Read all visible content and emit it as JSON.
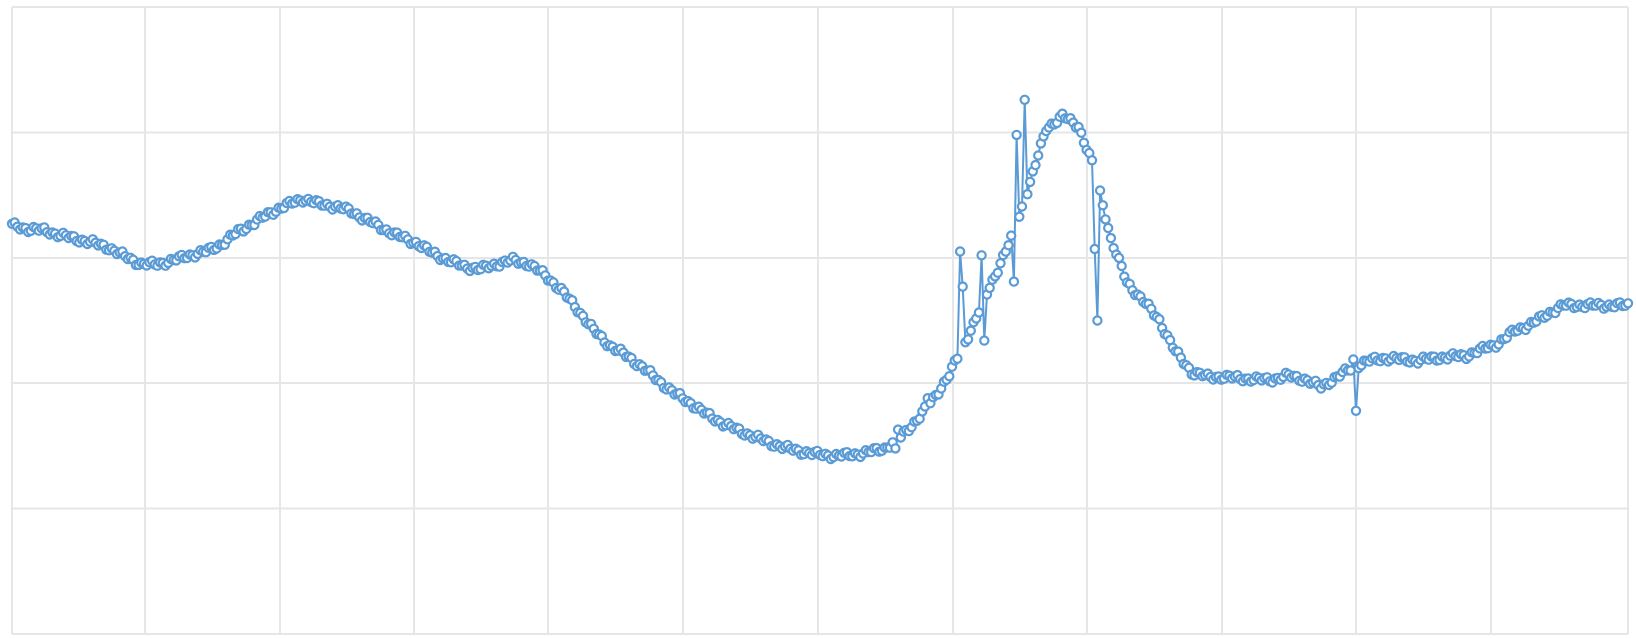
{
  "chart_data": {
    "type": "scatter",
    "title": "",
    "xlabel": "",
    "ylabel": "",
    "grid": true,
    "legend": "none",
    "xlim": [
      0,
      600
    ],
    "ylim": [
      0,
      5
    ],
    "colors": {
      "series": "#5b9bd5",
      "grid": "#e6e6e6",
      "background": "#ffffff"
    },
    "series": [
      {
        "name": "",
        "x_start": 0,
        "x_step": 6,
        "y": [
          3.26,
          3.23,
          3.22,
          3.18,
          3.15,
          3.12,
          3.08,
          3.01,
          2.95,
          2.95,
          2.98,
          3.02,
          3.05,
          3.11,
          3.21,
          3.28,
          3.36,
          3.42,
          3.47,
          3.43,
          3.41,
          3.37,
          3.3,
          3.23,
          3.17,
          3.12,
          3.04,
          2.98,
          2.93,
          2.91,
          2.95,
          2.98,
          2.95,
          2.86,
          2.74,
          2.59,
          2.42,
          2.3,
          2.22,
          2.13,
          2.02,
          1.92,
          1.84,
          1.75,
          1.68,
          1.62,
          1.57,
          1.52,
          1.48,
          1.45,
          1.43,
          1.42,
          1.43,
          1.45,
          1.48,
          1.57,
          1.71,
          1.87,
          2.07,
          2.33,
          2.62,
          2.91,
          3.2,
          3.6,
          4.03,
          4.13,
          4.05,
          3.7,
          3.15,
          2.8,
          2.66,
          2.5,
          2.25,
          2.09,
          2.05,
          2.05,
          2.04,
          2.03,
          2.03,
          2.06,
          2.03,
          1.97,
          2.05,
          2.13,
          2.18,
          2.2,
          2.19,
          2.18,
          2.2,
          2.21,
          2.22,
          2.27,
          2.32,
          2.42,
          2.47,
          2.55,
          2.62
        ]
      }
    ],
    "spikes": [
      {
        "x": 328,
        "y": 1.48
      },
      {
        "x": 329,
        "y": 1.63
      },
      {
        "x": 340,
        "y": 1.88
      },
      {
        "x": 352,
        "y": 3.05
      },
      {
        "x": 353,
        "y": 2.77
      },
      {
        "x": 360,
        "y": 3.02
      },
      {
        "x": 361,
        "y": 2.34
      },
      {
        "x": 372,
        "y": 2.81
      },
      {
        "x": 373,
        "y": 3.98
      },
      {
        "x": 376,
        "y": 4.26
      },
      {
        "x": 402,
        "y": 3.07
      },
      {
        "x": 403,
        "y": 2.5
      },
      {
        "x": 498,
        "y": 2.19
      },
      {
        "x": 499,
        "y": 1.78
      }
    ]
  }
}
